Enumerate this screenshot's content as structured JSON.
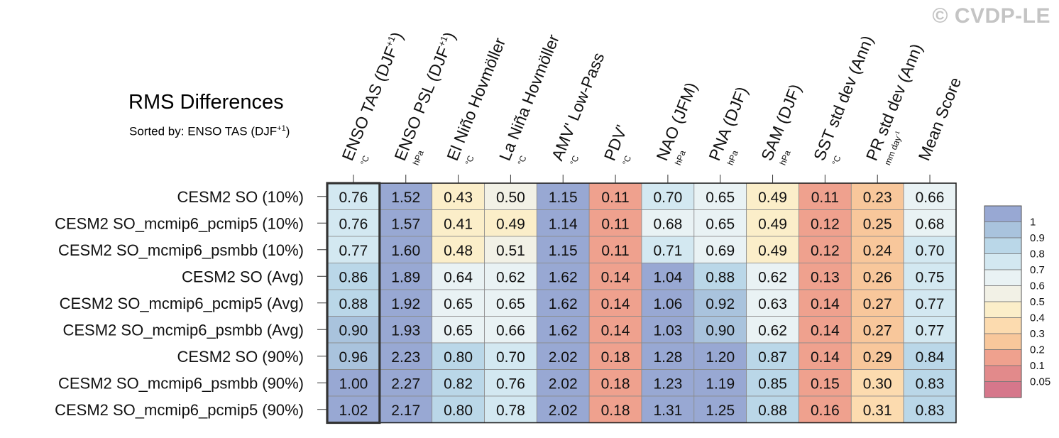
{
  "watermark": "© CVDP-LE",
  "title": "RMS Differences",
  "subtitle": {
    "text": "Sorted by: ENSO TAS (DJF",
    "sup": "+1",
    "close": ")"
  },
  "chart_data": {
    "type": "heatmap",
    "title": "RMS Differences",
    "columns": [
      {
        "label": "ENSO TAS (DJF",
        "sup": "+1",
        "close": ")",
        "unit": "°C"
      },
      {
        "label": "ENSO PSL (DJF",
        "sup": "+1",
        "close": ")",
        "unit": "hPa"
      },
      {
        "label": "El Niño Hovmöller",
        "unit": "°C"
      },
      {
        "label": "La Niña Hovmöller",
        "unit": "°C"
      },
      {
        "label": "AMV' Low-Pass",
        "unit": "°C"
      },
      {
        "label": "PDV'",
        "unit": "°C"
      },
      {
        "label": "NAO (JFM)",
        "unit": "hPa"
      },
      {
        "label": "PNA (DJF)",
        "unit": "hPa"
      },
      {
        "label": "SAM (DJF)",
        "unit": "hPa"
      },
      {
        "label": "SST std dev (Ann)",
        "unit": "°C"
      },
      {
        "label": "PR std dev (Ann)",
        "unit": "mm day",
        "unit_sup": "-1"
      },
      {
        "label": "Mean Score",
        "unit": ""
      }
    ],
    "rows": [
      "CESM2 SO (10%)",
      "CESM2 SO_mcmip6_pcmip5 (10%)",
      "CESM2 SO_mcmip6_psmbb (10%)",
      "CESM2 SO (Avg)",
      "CESM2 SO_mcmip6_pcmip5 (Avg)",
      "CESM2 SO_mcmip6_psmbb (Avg)",
      "CESM2 SO (90%)",
      "CESM2 SO_mcmip6_psmbb (90%)",
      "CESM2 SO_mcmip6_pcmip5 (90%)"
    ],
    "values": [
      [
        "0.76",
        "1.52",
        "0.43",
        "0.50",
        "1.15",
        "0.11",
        "0.70",
        "0.65",
        "0.49",
        "0.11",
        "0.23",
        "0.66"
      ],
      [
        "0.76",
        "1.57",
        "0.41",
        "0.49",
        "1.14",
        "0.11",
        "0.68",
        "0.65",
        "0.49",
        "0.12",
        "0.25",
        "0.68"
      ],
      [
        "0.77",
        "1.60",
        "0.48",
        "0.51",
        "1.15",
        "0.11",
        "0.71",
        "0.69",
        "0.49",
        "0.12",
        "0.24",
        "0.70"
      ],
      [
        "0.86",
        "1.89",
        "0.64",
        "0.62",
        "1.62",
        "0.14",
        "1.04",
        "0.88",
        "0.62",
        "0.13",
        "0.26",
        "0.75"
      ],
      [
        "0.88",
        "1.92",
        "0.65",
        "0.65",
        "1.62",
        "0.14",
        "1.06",
        "0.92",
        "0.63",
        "0.14",
        "0.27",
        "0.77"
      ],
      [
        "0.90",
        "1.93",
        "0.65",
        "0.66",
        "1.62",
        "0.14",
        "1.03",
        "0.90",
        "0.62",
        "0.14",
        "0.27",
        "0.77"
      ],
      [
        "0.96",
        "2.23",
        "0.80",
        "0.70",
        "2.02",
        "0.18",
        "1.28",
        "1.20",
        "0.87",
        "0.14",
        "0.29",
        "0.84"
      ],
      [
        "1.00",
        "2.27",
        "0.82",
        "0.76",
        "2.02",
        "0.18",
        "1.23",
        "1.19",
        "0.85",
        "0.15",
        "0.30",
        "0.83"
      ],
      [
        "1.02",
        "2.17",
        "0.80",
        "0.78",
        "2.02",
        "0.18",
        "1.31",
        "1.25",
        "0.88",
        "0.16",
        "0.31",
        "0.83"
      ]
    ],
    "highlighted_column": 0,
    "colorbar": {
      "labels": [
        "1",
        "0.9",
        "0.8",
        "0.7",
        "0.6",
        "0.5",
        "0.4",
        "0.3",
        "0.2",
        "0.1",
        "0.05"
      ],
      "colors": [
        "#98a8d3",
        "#a9c3dd",
        "#bad7e8",
        "#d3e8f1",
        "#e9f2f4",
        "#f2f1e6",
        "#fbeec9",
        "#fcdbaf",
        "#f8c79b",
        "#efa18e",
        "#e28a8b",
        "#d6778b"
      ]
    }
  }
}
